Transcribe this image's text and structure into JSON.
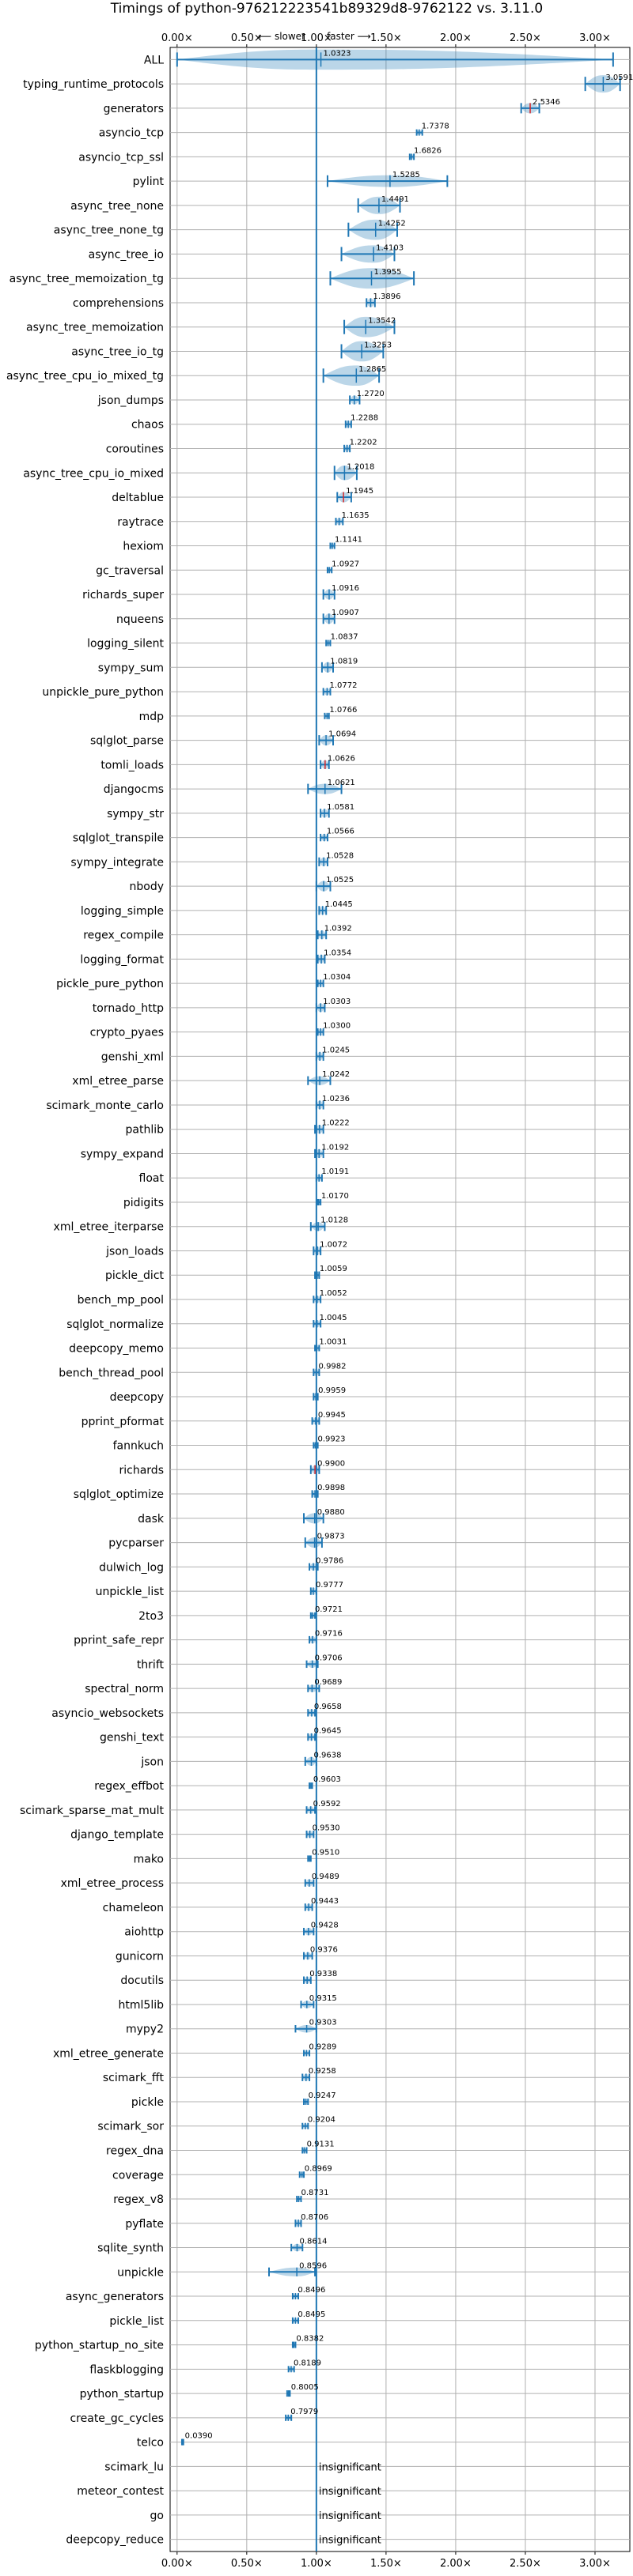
{
  "chart_data": {
    "type": "violin",
    "title": "Timings of python-976212223541b89329d8-9762122 vs. 3.11.0",
    "direction_left": "⟵ slower",
    "direction_right": "faster ⟶",
    "xlim": [
      -0.05,
      3.25
    ],
    "xticks": [
      0.0,
      0.5,
      1.0,
      1.5,
      2.0,
      2.5,
      3.0
    ],
    "xtick_labels": [
      "0.00×",
      "0.50×",
      "1.00×",
      "1.50×",
      "2.00×",
      "2.50×",
      "3.00×"
    ],
    "reference_line": 1.0,
    "grid": true,
    "insignificant_label": "insignificant",
    "benchmarks": [
      {
        "name": "ALL",
        "value": "1.0323",
        "mean": 1.0323,
        "lo": 0.0,
        "hi": 3.13,
        "width": 0.12
      },
      {
        "name": "typing_runtime_protocols",
        "value": "3.0591",
        "mean": 3.0591,
        "lo": 2.93,
        "hi": 3.18,
        "width": 0.1
      },
      {
        "name": "generators",
        "value": "2.5346",
        "mean": 2.5346,
        "lo": 2.47,
        "hi": 2.6,
        "width": 0.05,
        "red": true
      },
      {
        "name": "asyncio_tcp",
        "value": "1.7378",
        "mean": 1.7378,
        "lo": 1.72,
        "hi": 1.76,
        "width": 0.02
      },
      {
        "name": "asyncio_tcp_ssl",
        "value": "1.6826",
        "mean": 1.6826,
        "lo": 1.67,
        "hi": 1.7,
        "width": 0.02
      },
      {
        "name": "pylint",
        "value": "1.5285",
        "mean": 1.5285,
        "lo": 1.08,
        "hi": 1.94,
        "width": 0.06
      },
      {
        "name": "async_tree_none",
        "value": "1.4491",
        "mean": 1.4491,
        "lo": 1.3,
        "hi": 1.6,
        "width": 0.1
      },
      {
        "name": "async_tree_none_tg",
        "value": "1.4252",
        "mean": 1.4252,
        "lo": 1.23,
        "hi": 1.58,
        "width": 0.12
      },
      {
        "name": "async_tree_io",
        "value": "1.4103",
        "mean": 1.4103,
        "lo": 1.18,
        "hi": 1.56,
        "width": 0.1
      },
      {
        "name": "async_tree_memoization_tg",
        "value": "1.3955",
        "mean": 1.3955,
        "lo": 1.1,
        "hi": 1.7,
        "width": 0.18
      },
      {
        "name": "comprehensions",
        "value": "1.3896",
        "mean": 1.3896,
        "lo": 1.36,
        "hi": 1.42,
        "width": 0.04
      },
      {
        "name": "async_tree_memoization",
        "value": "1.3542",
        "mean": 1.3542,
        "lo": 1.2,
        "hi": 1.56,
        "width": 0.12
      },
      {
        "name": "async_tree_io_tg",
        "value": "1.3253",
        "mean": 1.3253,
        "lo": 1.18,
        "hi": 1.48,
        "width": 0.12
      },
      {
        "name": "async_tree_cpu_io_mixed_tg",
        "value": "1.2865",
        "mean": 1.2865,
        "lo": 1.05,
        "hi": 1.45,
        "width": 0.12
      },
      {
        "name": "json_dumps",
        "value": "1.2720",
        "mean": 1.272,
        "lo": 1.24,
        "hi": 1.31,
        "width": 0.04
      },
      {
        "name": "chaos",
        "value": "1.2288",
        "mean": 1.2288,
        "lo": 1.21,
        "hi": 1.25,
        "width": 0.03
      },
      {
        "name": "coroutines",
        "value": "1.2202",
        "mean": 1.2202,
        "lo": 1.2,
        "hi": 1.24,
        "width": 0.03
      },
      {
        "name": "async_tree_cpu_io_mixed",
        "value": "1.2018",
        "mean": 1.2018,
        "lo": 1.13,
        "hi": 1.29,
        "width": 0.08
      },
      {
        "name": "deltablue",
        "value": "1.1945",
        "mean": 1.1945,
        "lo": 1.15,
        "hi": 1.25,
        "width": 0.05,
        "red": true
      },
      {
        "name": "raytrace",
        "value": "1.1635",
        "mean": 1.1635,
        "lo": 1.14,
        "hi": 1.19,
        "width": 0.03
      },
      {
        "name": "hexiom",
        "value": "1.1141",
        "mean": 1.1141,
        "lo": 1.1,
        "hi": 1.13,
        "width": 0.02
      },
      {
        "name": "gc_traversal",
        "value": "1.0927",
        "mean": 1.0927,
        "lo": 1.08,
        "hi": 1.11,
        "width": 0.02
      },
      {
        "name": "richards_super",
        "value": "1.0916",
        "mean": 1.0916,
        "lo": 1.05,
        "hi": 1.13,
        "width": 0.05
      },
      {
        "name": "nqueens",
        "value": "1.0907",
        "mean": 1.0907,
        "lo": 1.05,
        "hi": 1.13,
        "width": 0.05
      },
      {
        "name": "logging_silent",
        "value": "1.0837",
        "mean": 1.0837,
        "lo": 1.07,
        "hi": 1.1,
        "width": 0.02
      },
      {
        "name": "sympy_sum",
        "value": "1.0819",
        "mean": 1.0819,
        "lo": 1.04,
        "hi": 1.12,
        "width": 0.05
      },
      {
        "name": "unpickle_pure_python",
        "value": "1.0772",
        "mean": 1.0772,
        "lo": 1.05,
        "hi": 1.1,
        "width": 0.03
      },
      {
        "name": "mdp",
        "value": "1.0766",
        "mean": 1.0766,
        "lo": 1.06,
        "hi": 1.09,
        "width": 0.02
      },
      {
        "name": "sqlglot_parse",
        "value": "1.0694",
        "mean": 1.0694,
        "lo": 1.02,
        "hi": 1.12,
        "width": 0.05
      },
      {
        "name": "tomli_loads",
        "value": "1.0626",
        "mean": 1.0626,
        "lo": 1.03,
        "hi": 1.09,
        "width": 0.04,
        "red": true
      },
      {
        "name": "djangocms",
        "value": "1.0621",
        "mean": 1.0621,
        "lo": 0.94,
        "hi": 1.18,
        "width": 0.05
      },
      {
        "name": "sympy_str",
        "value": "1.0581",
        "mean": 1.0581,
        "lo": 1.03,
        "hi": 1.09,
        "width": 0.04
      },
      {
        "name": "sqlglot_transpile",
        "value": "1.0566",
        "mean": 1.0566,
        "lo": 1.03,
        "hi": 1.08,
        "width": 0.03
      },
      {
        "name": "sympy_integrate",
        "value": "1.0528",
        "mean": 1.0528,
        "lo": 1.02,
        "hi": 1.08,
        "width": 0.04
      },
      {
        "name": "nbody",
        "value": "1.0525",
        "mean": 1.0525,
        "lo": 1.0,
        "hi": 1.1,
        "width": 0.05
      },
      {
        "name": "logging_simple",
        "value": "1.0445",
        "mean": 1.0445,
        "lo": 1.02,
        "hi": 1.07,
        "width": 0.04
      },
      {
        "name": "regex_compile",
        "value": "1.0392",
        "mean": 1.0392,
        "lo": 1.01,
        "hi": 1.07,
        "width": 0.04
      },
      {
        "name": "logging_format",
        "value": "1.0354",
        "mean": 1.0354,
        "lo": 1.01,
        "hi": 1.06,
        "width": 0.04
      },
      {
        "name": "pickle_pure_python",
        "value": "1.0304",
        "mean": 1.0304,
        "lo": 1.01,
        "hi": 1.05,
        "width": 0.03
      },
      {
        "name": "tornado_http",
        "value": "1.0303",
        "mean": 1.0303,
        "lo": 1.0,
        "hi": 1.06,
        "width": 0.04
      },
      {
        "name": "crypto_pyaes",
        "value": "1.0300",
        "mean": 1.03,
        "lo": 1.01,
        "hi": 1.05,
        "width": 0.03
      },
      {
        "name": "genshi_xml",
        "value": "1.0245",
        "mean": 1.0245,
        "lo": 1.0,
        "hi": 1.05,
        "width": 0.04
      },
      {
        "name": "xml_etree_parse",
        "value": "1.0242",
        "mean": 1.0242,
        "lo": 0.94,
        "hi": 1.1,
        "width": 0.04
      },
      {
        "name": "scimark_monte_carlo",
        "value": "1.0236",
        "mean": 1.0236,
        "lo": 1.0,
        "hi": 1.05,
        "width": 0.04
      },
      {
        "name": "pathlib",
        "value": "1.0222",
        "mean": 1.0222,
        "lo": 0.99,
        "hi": 1.05,
        "width": 0.04
      },
      {
        "name": "sympy_expand",
        "value": "1.0192",
        "mean": 1.0192,
        "lo": 0.99,
        "hi": 1.05,
        "width": 0.04
      },
      {
        "name": "float",
        "value": "1.0191",
        "mean": 1.0191,
        "lo": 1.0,
        "hi": 1.04,
        "width": 0.03
      },
      {
        "name": "pidigits",
        "value": "1.0170",
        "mean": 1.017,
        "lo": 1.01,
        "hi": 1.03,
        "width": 0.02
      },
      {
        "name": "xml_etree_iterparse",
        "value": "1.0128",
        "mean": 1.0128,
        "lo": 0.96,
        "hi": 1.06,
        "width": 0.04
      },
      {
        "name": "json_loads",
        "value": "1.0072",
        "mean": 1.0072,
        "lo": 0.98,
        "hi": 1.03,
        "width": 0.04
      },
      {
        "name": "pickle_dict",
        "value": "1.0059",
        "mean": 1.0059,
        "lo": 0.99,
        "hi": 1.02,
        "width": 0.03
      },
      {
        "name": "bench_mp_pool",
        "value": "1.0052",
        "mean": 1.0052,
        "lo": 0.98,
        "hi": 1.03,
        "width": 0.03
      },
      {
        "name": "sqlglot_normalize",
        "value": "1.0045",
        "mean": 1.0045,
        "lo": 0.98,
        "hi": 1.03,
        "width": 0.03
      },
      {
        "name": "deepcopy_memo",
        "value": "1.0031",
        "mean": 1.0031,
        "lo": 0.99,
        "hi": 1.02,
        "width": 0.02
      },
      {
        "name": "bench_thread_pool",
        "value": "0.9982",
        "mean": 0.9982,
        "lo": 0.98,
        "hi": 1.02,
        "width": 0.03
      },
      {
        "name": "deepcopy",
        "value": "0.9959",
        "mean": 0.9959,
        "lo": 0.98,
        "hi": 1.01,
        "width": 0.03
      },
      {
        "name": "pprint_pformat",
        "value": "0.9945",
        "mean": 0.9945,
        "lo": 0.97,
        "hi": 1.02,
        "width": 0.03
      },
      {
        "name": "fannkuch",
        "value": "0.9923",
        "mean": 0.9923,
        "lo": 0.98,
        "hi": 1.01,
        "width": 0.02
      },
      {
        "name": "richards",
        "value": "0.9900",
        "mean": 0.99,
        "lo": 0.96,
        "hi": 1.02,
        "width": 0.04,
        "red": true
      },
      {
        "name": "sqlglot_optimize",
        "value": "0.9898",
        "mean": 0.9898,
        "lo": 0.97,
        "hi": 1.01,
        "width": 0.03
      },
      {
        "name": "dask",
        "value": "0.9880",
        "mean": 0.988,
        "lo": 0.91,
        "hi": 1.05,
        "width": 0.05
      },
      {
        "name": "pycparser",
        "value": "0.9873",
        "mean": 0.9873,
        "lo": 0.92,
        "hi": 1.04,
        "width": 0.05
      },
      {
        "name": "dulwich_log",
        "value": "0.9786",
        "mean": 0.9786,
        "lo": 0.95,
        "hi": 1.01,
        "width": 0.03
      },
      {
        "name": "unpickle_list",
        "value": "0.9777",
        "mean": 0.9777,
        "lo": 0.96,
        "hi": 1.0,
        "width": 0.03
      },
      {
        "name": "2to3",
        "value": "0.9721",
        "mean": 0.9721,
        "lo": 0.96,
        "hi": 0.99,
        "width": 0.02
      },
      {
        "name": "pprint_safe_repr",
        "value": "0.9716",
        "mean": 0.9716,
        "lo": 0.95,
        "hi": 1.0,
        "width": 0.03
      },
      {
        "name": "thrift",
        "value": "0.9706",
        "mean": 0.9706,
        "lo": 0.93,
        "hi": 1.01,
        "width": 0.03
      },
      {
        "name": "spectral_norm",
        "value": "0.9689",
        "mean": 0.9689,
        "lo": 0.94,
        "hi": 1.02,
        "width": 0.03
      },
      {
        "name": "asyncio_websockets",
        "value": "0.9658",
        "mean": 0.9658,
        "lo": 0.94,
        "hi": 0.99,
        "width": 0.03
      },
      {
        "name": "genshi_text",
        "value": "0.9645",
        "mean": 0.9645,
        "lo": 0.94,
        "hi": 0.99,
        "width": 0.03
      },
      {
        "name": "json",
        "value": "0.9638",
        "mean": 0.9638,
        "lo": 0.92,
        "hi": 1.0,
        "width": 0.04
      },
      {
        "name": "regex_effbot",
        "value": "0.9603",
        "mean": 0.9603,
        "lo": 0.95,
        "hi": 0.97,
        "width": 0.02
      },
      {
        "name": "scimark_sparse_mat_mult",
        "value": "0.9592",
        "mean": 0.9592,
        "lo": 0.93,
        "hi": 0.99,
        "width": 0.03
      },
      {
        "name": "django_template",
        "value": "0.9530",
        "mean": 0.953,
        "lo": 0.93,
        "hi": 0.98,
        "width": 0.03
      },
      {
        "name": "mako",
        "value": "0.9510",
        "mean": 0.951,
        "lo": 0.94,
        "hi": 0.96,
        "width": 0.02
      },
      {
        "name": "xml_etree_process",
        "value": "0.9489",
        "mean": 0.9489,
        "lo": 0.92,
        "hi": 0.98,
        "width": 0.03
      },
      {
        "name": "chameleon",
        "value": "0.9443",
        "mean": 0.9443,
        "lo": 0.92,
        "hi": 0.97,
        "width": 0.03
      },
      {
        "name": "aiohttp",
        "value": "0.9428",
        "mean": 0.9428,
        "lo": 0.91,
        "hi": 0.98,
        "width": 0.03
      },
      {
        "name": "gunicorn",
        "value": "0.9376",
        "mean": 0.9376,
        "lo": 0.91,
        "hi": 0.97,
        "width": 0.03
      },
      {
        "name": "docutils",
        "value": "0.9338",
        "mean": 0.9338,
        "lo": 0.91,
        "hi": 0.96,
        "width": 0.03
      },
      {
        "name": "html5lib",
        "value": "0.9315",
        "mean": 0.9315,
        "lo": 0.89,
        "hi": 0.98,
        "width": 0.03
      },
      {
        "name": "mypy2",
        "value": "0.9303",
        "mean": 0.9303,
        "lo": 0.85,
        "hi": 1.0,
        "width": 0.03
      },
      {
        "name": "xml_etree_generate",
        "value": "0.9289",
        "mean": 0.9289,
        "lo": 0.91,
        "hi": 0.95,
        "width": 0.02
      },
      {
        "name": "scimark_fft",
        "value": "0.9258",
        "mean": 0.9258,
        "lo": 0.9,
        "hi": 0.95,
        "width": 0.03
      },
      {
        "name": "pickle",
        "value": "0.9247",
        "mean": 0.9247,
        "lo": 0.91,
        "hi": 0.94,
        "width": 0.02
      },
      {
        "name": "scimark_sor",
        "value": "0.9204",
        "mean": 0.9204,
        "lo": 0.9,
        "hi": 0.94,
        "width": 0.02
      },
      {
        "name": "regex_dna",
        "value": "0.9131",
        "mean": 0.9131,
        "lo": 0.9,
        "hi": 0.93,
        "width": 0.02
      },
      {
        "name": "coverage",
        "value": "0.8969",
        "mean": 0.8969,
        "lo": 0.88,
        "hi": 0.91,
        "width": 0.02
      },
      {
        "name": "regex_v8",
        "value": "0.8731",
        "mean": 0.8731,
        "lo": 0.86,
        "hi": 0.89,
        "width": 0.02
      },
      {
        "name": "pyflate",
        "value": "0.8706",
        "mean": 0.8706,
        "lo": 0.85,
        "hi": 0.89,
        "width": 0.03
      },
      {
        "name": "sqlite_synth",
        "value": "0.8614",
        "mean": 0.8614,
        "lo": 0.82,
        "hi": 0.9,
        "width": 0.03
      },
      {
        "name": "unpickle",
        "value": "0.8596",
        "mean": 0.8596,
        "lo": 0.66,
        "hi": 0.99,
        "width": 0.04
      },
      {
        "name": "async_generators",
        "value": "0.8496",
        "mean": 0.8496,
        "lo": 0.83,
        "hi": 0.87,
        "width": 0.02
      },
      {
        "name": "pickle_list",
        "value": "0.8495",
        "mean": 0.8495,
        "lo": 0.83,
        "hi": 0.87,
        "width": 0.02
      },
      {
        "name": "python_startup_no_site",
        "value": "0.8382",
        "mean": 0.8382,
        "lo": 0.83,
        "hi": 0.85,
        "width": 0.015
      },
      {
        "name": "flaskblogging",
        "value": "0.8189",
        "mean": 0.8189,
        "lo": 0.8,
        "hi": 0.84,
        "width": 0.02
      },
      {
        "name": "python_startup",
        "value": "0.8005",
        "mean": 0.8005,
        "lo": 0.79,
        "hi": 0.81,
        "width": 0.015
      },
      {
        "name": "create_gc_cycles",
        "value": "0.7979",
        "mean": 0.7979,
        "lo": 0.78,
        "hi": 0.82,
        "width": 0.02
      },
      {
        "name": "telco",
        "value": "0.0390",
        "mean": 0.039,
        "lo": 0.035,
        "hi": 0.045,
        "width": 0.008
      },
      {
        "name": "scimark_lu",
        "insignificant": true
      },
      {
        "name": "meteor_contest",
        "insignificant": true
      },
      {
        "name": "go",
        "insignificant": true
      },
      {
        "name": "deepcopy_reduce",
        "insignificant": true
      }
    ]
  }
}
